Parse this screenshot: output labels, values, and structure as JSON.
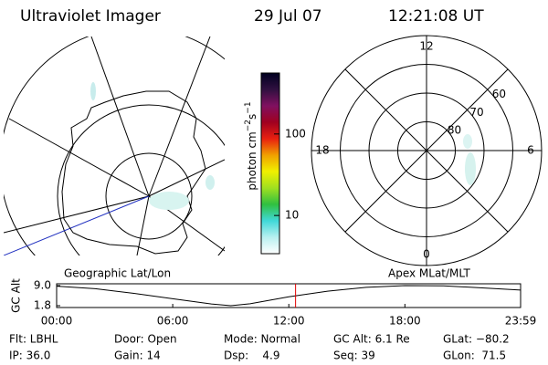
{
  "header": {
    "title": "Ultraviolet Imager",
    "date": "29 Jul 07",
    "time": "12:21:08 UT"
  },
  "geo_map": {
    "title": "Geographic Lat/Lon"
  },
  "colorbar": {
    "label": "photon cm",
    "exp1": "−2",
    "unit2": "s",
    "exp2": "−1",
    "scale": "log",
    "clim": [
      3.4,
      560
    ],
    "ticks": [
      10,
      100
    ],
    "colors": [
      "#ffffff",
      "#b8f0f0",
      "#40d8d8",
      "#30c040",
      "#a0e020",
      "#f0f000",
      "#f0a000",
      "#e82010",
      "#a00020",
      "#801060",
      "#301040",
      "#000020"
    ]
  },
  "polar_map": {
    "title": "Apex MLat/MLT",
    "rlim": [
      50,
      90
    ],
    "mlt_labels": [
      12,
      6,
      18,
      0
    ],
    "lat_labels": [
      60,
      70,
      80
    ]
  },
  "chart_data": {
    "type": "line",
    "ylabel": "GC Alt",
    "x": [
      0,
      2,
      4,
      6,
      8,
      9,
      10,
      12,
      14,
      16,
      18,
      20,
      22,
      23.98
    ],
    "values": [
      8.8,
      7.9,
      6.2,
      4.3,
      2.4,
      1.8,
      2.5,
      5.0,
      7.0,
      8.4,
      9.0,
      8.9,
      8.2,
      7.4
    ],
    "color": "#000000",
    "marker_x": 12.35,
    "marker_color": "#e00000",
    "xlim": [
      0,
      23.98
    ],
    "ylim": [
      1.8,
      9.0
    ],
    "xticks": [
      {
        "value": 0,
        "label": "00:00"
      },
      {
        "value": 6,
        "label": "06:00"
      },
      {
        "value": 12,
        "label": "12:00"
      },
      {
        "value": 18,
        "label": "18:00"
      },
      {
        "value": 23.98,
        "label": "23:59"
      }
    ],
    "yticks": [
      {
        "value": 9,
        "label": "9.0"
      },
      {
        "value": 1.8,
        "label": "1.8"
      }
    ]
  },
  "status": {
    "rows": [
      [
        "Flt: LBHL",
        "Door: Open",
        "Mode: Normal",
        "GC Alt: 6.1 Re",
        "GLat: −80.2"
      ],
      [
        "IP: 36.0",
        "Gain: 14",
        "Dsp:    4.9",
        "Seq: 39",
        "GLon:  71.5"
      ]
    ]
  }
}
